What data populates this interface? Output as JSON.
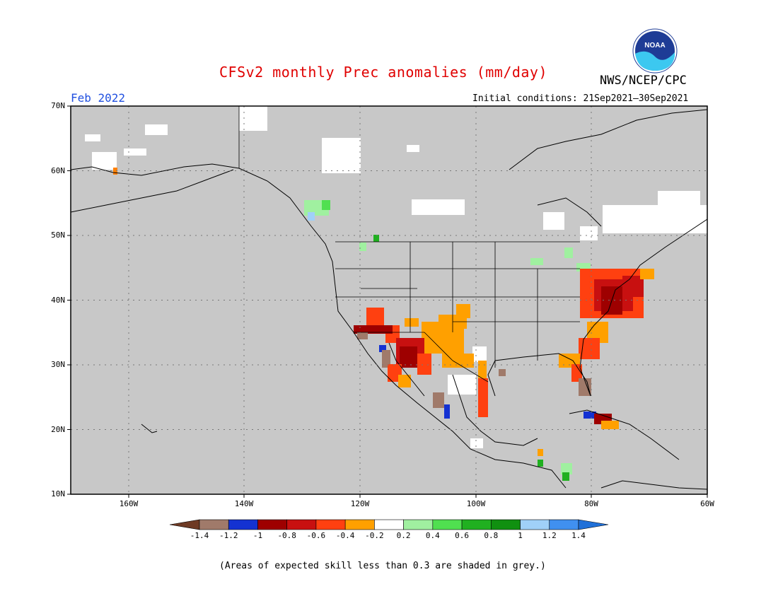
{
  "title": "CFSv2 monthly Prec anomalies (mm/day)",
  "month": "Feb 2022",
  "initial_conditions": "Initial conditions: 21Sep2021–30Sep2021",
  "agency": "NWS/NCEP/CPC",
  "logo_text": "NOAA",
  "footer": "(Areas of expected skill less than 0.3 are shaded in grey.)",
  "lat_labels": [
    "70N",
    "60N",
    "50N",
    "40N",
    "30N",
    "20N",
    "10N"
  ],
  "lon_labels": [
    "160W",
    "140W",
    "120W",
    "100W",
    "80W",
    "60W"
  ],
  "colorbar": {
    "labels": [
      "-1.4",
      "-1.2",
      "-1",
      "-0.8",
      "-0.6",
      "-0.4",
      "-0.2",
      "0.2",
      "0.4",
      "0.6",
      "0.8",
      "1",
      "1.2",
      "1.4"
    ],
    "colors": [
      "#6e3a24",
      "#a07a6a",
      "#1432d2",
      "#9e0000",
      "#c81010",
      "#ff4010",
      "#ffa000",
      "#ffffff",
      "#a0f0a0",
      "#50e050",
      "#20b020",
      "#109010",
      "#a0d0f8",
      "#4090f0",
      "#2070d8"
    ]
  },
  "colors": {
    "skill_grey": "#c8c8c8",
    "title_red": "#e00000",
    "month_blue": "#2050e0"
  }
}
